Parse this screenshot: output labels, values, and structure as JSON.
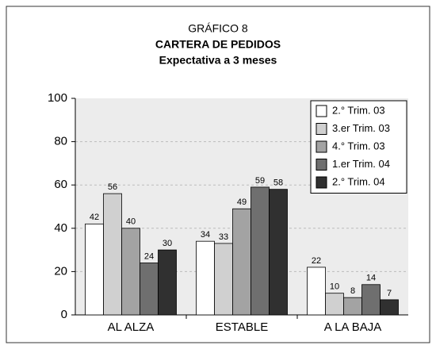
{
  "chart_data": {
    "type": "bar",
    "title": "GRÁFICO 8",
    "subtitle": "CARTERA DE PEDIDOS",
    "caption": "Expectativa a 3 meses",
    "categories": [
      "AL ALZA",
      "ESTABLE",
      "A LA BAJA"
    ],
    "series": [
      {
        "name": "2.° Trim. 03",
        "color": "#ffffff",
        "values": [
          42,
          34,
          22
        ]
      },
      {
        "name": "3.er Trim. 03",
        "color": "#d0d0d0",
        "values": [
          56,
          33,
          10
        ]
      },
      {
        "name": "4.° Trim. 03",
        "color": "#a3a3a3",
        "values": [
          40,
          49,
          8
        ]
      },
      {
        "name": "1.er Trim. 04",
        "color": "#6f6f6f",
        "values": [
          24,
          59,
          14
        ]
      },
      {
        "name": "2.° Trim. 04",
        "color": "#303030",
        "values": [
          30,
          58,
          7
        ]
      }
    ],
    "ylim": [
      0,
      100
    ],
    "yticks": [
      0,
      20,
      40,
      60,
      80,
      100
    ],
    "grid": true,
    "legend": "upper right"
  }
}
